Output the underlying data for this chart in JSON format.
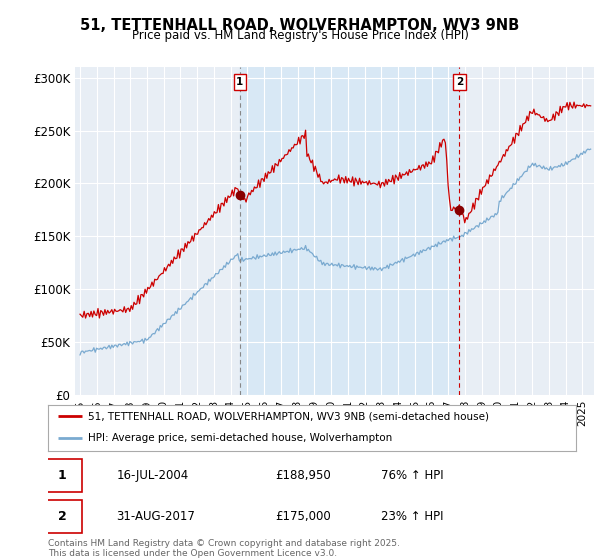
{
  "title": "51, TETTENHALL ROAD, WOLVERHAMPTON, WV3 9NB",
  "subtitle": "Price paid vs. HM Land Registry's House Price Index (HPI)",
  "ylim": [
    0,
    310000
  ],
  "yticks": [
    0,
    50000,
    100000,
    150000,
    200000,
    250000,
    300000
  ],
  "ytick_labels": [
    "£0",
    "£50K",
    "£100K",
    "£150K",
    "£200K",
    "£250K",
    "£300K"
  ],
  "sale1_date_num": 2004.54,
  "sale1_price": 188950,
  "sale1_label": "1",
  "sale1_display": "16-JUL-2004",
  "sale1_amount": "£188,950",
  "sale1_hpi": "76% ↑ HPI",
  "sale2_date_num": 2017.66,
  "sale2_price": 175000,
  "sale2_label": "2",
  "sale2_display": "31-AUG-2017",
  "sale2_amount": "£175,000",
  "sale2_hpi": "23% ↑ HPI",
  "red_line_color": "#cc0000",
  "blue_line_color": "#7aaad0",
  "shade_color": "#ddeeff",
  "background_color": "#f0f4f8",
  "plot_bg_color": "#f0f4f8",
  "legend_label_red": "51, TETTENHALL ROAD, WOLVERHAMPTON, WV3 9NB (semi-detached house)",
  "legend_label_blue": "HPI: Average price, semi-detached house, Wolverhampton",
  "footer": "Contains HM Land Registry data © Crown copyright and database right 2025.\nThis data is licensed under the Open Government Licence v3.0.",
  "grid_color": "#cccccc",
  "xmin": 1995,
  "xmax": 2025
}
